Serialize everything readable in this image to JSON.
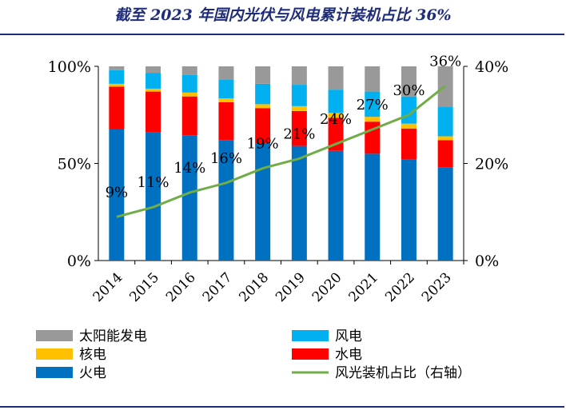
{
  "title": "截至 2023 年国内光伏与风电累计装机占比 36%",
  "chart_data": {
    "type": "bar",
    "stacked": true,
    "categories": [
      "2014",
      "2015",
      "2016",
      "2017",
      "2018",
      "2019",
      "2020",
      "2021",
      "2022",
      "2023"
    ],
    "series": [
      {
        "name": "火电",
        "color": "#0070c0",
        "values": [
          67.5,
          66,
          64.5,
          62,
          60.5,
          59,
          56.5,
          55,
          52,
          48
        ]
      },
      {
        "name": "水电",
        "color": "#ff0000",
        "values": [
          22,
          21,
          20,
          19.5,
          18,
          18,
          17,
          16.5,
          16,
          14
        ]
      },
      {
        "name": "核电",
        "color": "#ffc000",
        "values": [
          1.5,
          1.5,
          2,
          2,
          2,
          2.5,
          2.5,
          2.5,
          2.5,
          2
        ]
      },
      {
        "name": "风电",
        "color": "#00b0f0",
        "values": [
          7,
          8,
          9,
          9.5,
          10.5,
          11,
          12,
          13,
          14,
          15
        ]
      },
      {
        "name": "太阳能发电",
        "color": "#999999",
        "values": [
          2,
          3.5,
          4.5,
          7,
          9,
          9.5,
          12,
          13,
          15.5,
          21
        ]
      }
    ],
    "line": {
      "name": "风光装机占比（右轴）",
      "color": "#70ad47",
      "values": [
        9,
        11,
        14,
        16,
        19,
        21,
        24,
        27,
        30,
        36
      ],
      "labels": [
        "9%",
        "11%",
        "14%",
        "16%",
        "19%",
        "21%",
        "24%",
        "27%",
        "30%",
        "36%"
      ]
    },
    "y_left": {
      "ylim": [
        0,
        100
      ],
      "ticks": [
        "0%",
        "50%",
        "100%"
      ]
    },
    "y_right": {
      "ylim": [
        0,
        40
      ],
      "ticks": [
        "0%",
        "20%",
        "40%"
      ]
    },
    "legend": {
      "position": "bottom",
      "items": [
        {
          "label": "太阳能发电",
          "color": "#999999",
          "kind": "box"
        },
        {
          "label": "风电",
          "color": "#00b0f0",
          "kind": "box"
        },
        {
          "label": "核电",
          "color": "#ffc000",
          "kind": "box"
        },
        {
          "label": "水电",
          "color": "#ff0000",
          "kind": "box"
        },
        {
          "label": "火电",
          "color": "#0070c0",
          "kind": "box"
        },
        {
          "label": "风光装机占比（右轴）",
          "color": "#70ad47",
          "kind": "line"
        }
      ]
    }
  }
}
